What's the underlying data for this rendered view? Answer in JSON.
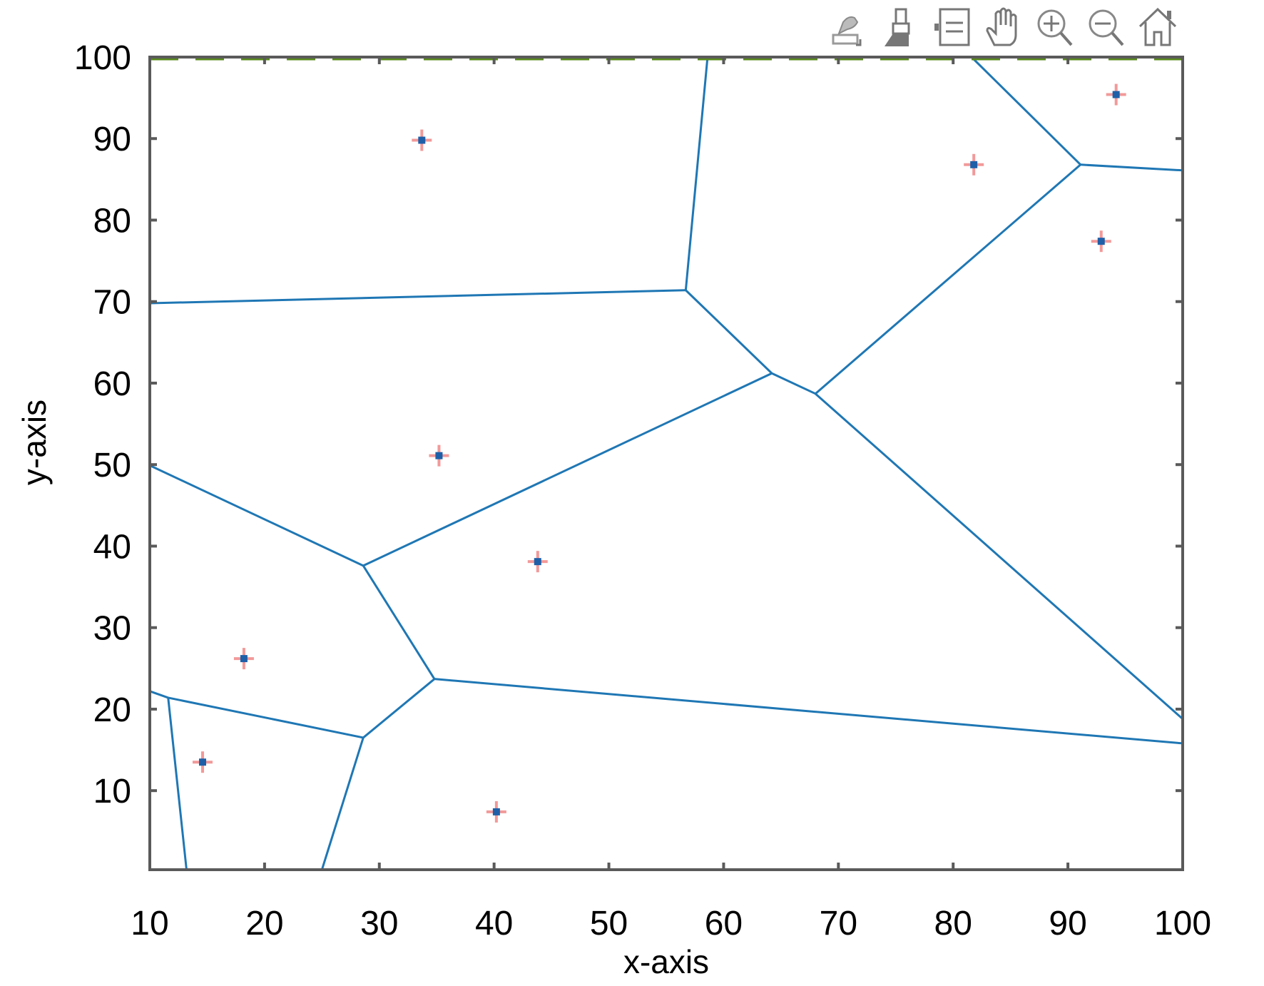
{
  "toolbar": {
    "buttons": [
      {
        "name": "export-icon",
        "label": "Export"
      },
      {
        "name": "brush-icon",
        "label": "Brush"
      },
      {
        "name": "datatip-icon",
        "label": "Data Tips"
      },
      {
        "name": "pan-icon",
        "label": "Pan"
      },
      {
        "name": "zoom-in-icon",
        "label": "Zoom In"
      },
      {
        "name": "zoom-out-icon",
        "label": "Zoom Out"
      },
      {
        "name": "home-icon",
        "label": "Restore View"
      }
    ]
  },
  "colors": {
    "edge": "#1f77b4",
    "point_fill": "#1f5fa8",
    "point_marker": "#f08080",
    "axis": "#5a5a5a",
    "boundary": "#5a8a1e"
  },
  "chart_data": {
    "type": "scatter",
    "title": "",
    "xlabel": "x-axis",
    "ylabel": "y-axis",
    "xlim": [
      10,
      100
    ],
    "ylim": [
      0.3,
      100
    ],
    "xticks": [
      10,
      20,
      30,
      40,
      50,
      60,
      70,
      80,
      90,
      100
    ],
    "yticks": [
      10,
      20,
      30,
      40,
      50,
      60,
      70,
      80,
      90,
      100
    ],
    "grid": false,
    "legend": null,
    "series": [
      {
        "name": "sites",
        "type": "scatter",
        "marker": "+ with dot",
        "x": [
          33.7,
          94.2,
          81.8,
          92.9,
          35.2,
          43.8,
          18.2,
          14.6,
          40.2
        ],
        "y": [
          89.8,
          95.4,
          86.8,
          77.4,
          51.1,
          38.1,
          26.2,
          13.5,
          7.4
        ]
      },
      {
        "name": "voronoi-edges",
        "type": "line-segments",
        "segments": [
          [
            [
              58.6,
              100
            ],
            [
              56.7,
              71.4
            ]
          ],
          [
            [
              10,
              69.8
            ],
            [
              56.7,
              71.4
            ]
          ],
          [
            [
              56.7,
              71.4
            ],
            [
              64.2,
              61.2
            ]
          ],
          [
            [
              64.2,
              61.2
            ],
            [
              68.0,
              58.7
            ]
          ],
          [
            [
              28.6,
              37.6
            ],
            [
              64.2,
              61.2
            ]
          ],
          [
            [
              68.0,
              58.7
            ],
            [
              91.1,
              86.8
            ]
          ],
          [
            [
              81.6,
              100
            ],
            [
              91.1,
              86.8
            ]
          ],
          [
            [
              91.1,
              86.8
            ],
            [
              100,
              86.1
            ]
          ],
          [
            [
              68.0,
              58.7
            ],
            [
              100,
              18.8
            ]
          ],
          [
            [
              10,
              49.9
            ],
            [
              28.6,
              37.6
            ]
          ],
          [
            [
              28.6,
              37.6
            ],
            [
              34.8,
              23.7
            ]
          ],
          [
            [
              34.8,
              23.7
            ],
            [
              100,
              15.8
            ]
          ],
          [
            [
              34.8,
              23.7
            ],
            [
              28.6,
              16.5
            ]
          ],
          [
            [
              10,
              22.2
            ],
            [
              11.6,
              21.4
            ]
          ],
          [
            [
              11.6,
              21.4
            ],
            [
              28.6,
              16.5
            ]
          ],
          [
            [
              11.6,
              21.4
            ],
            [
              13.2,
              0.3
            ]
          ],
          [
            [
              28.6,
              16.5
            ],
            [
              25.0,
              0.3
            ]
          ]
        ]
      },
      {
        "name": "top-boundary",
        "type": "dashed-line",
        "x": [
          10,
          100
        ],
        "y": [
          100,
          100
        ]
      }
    ]
  }
}
